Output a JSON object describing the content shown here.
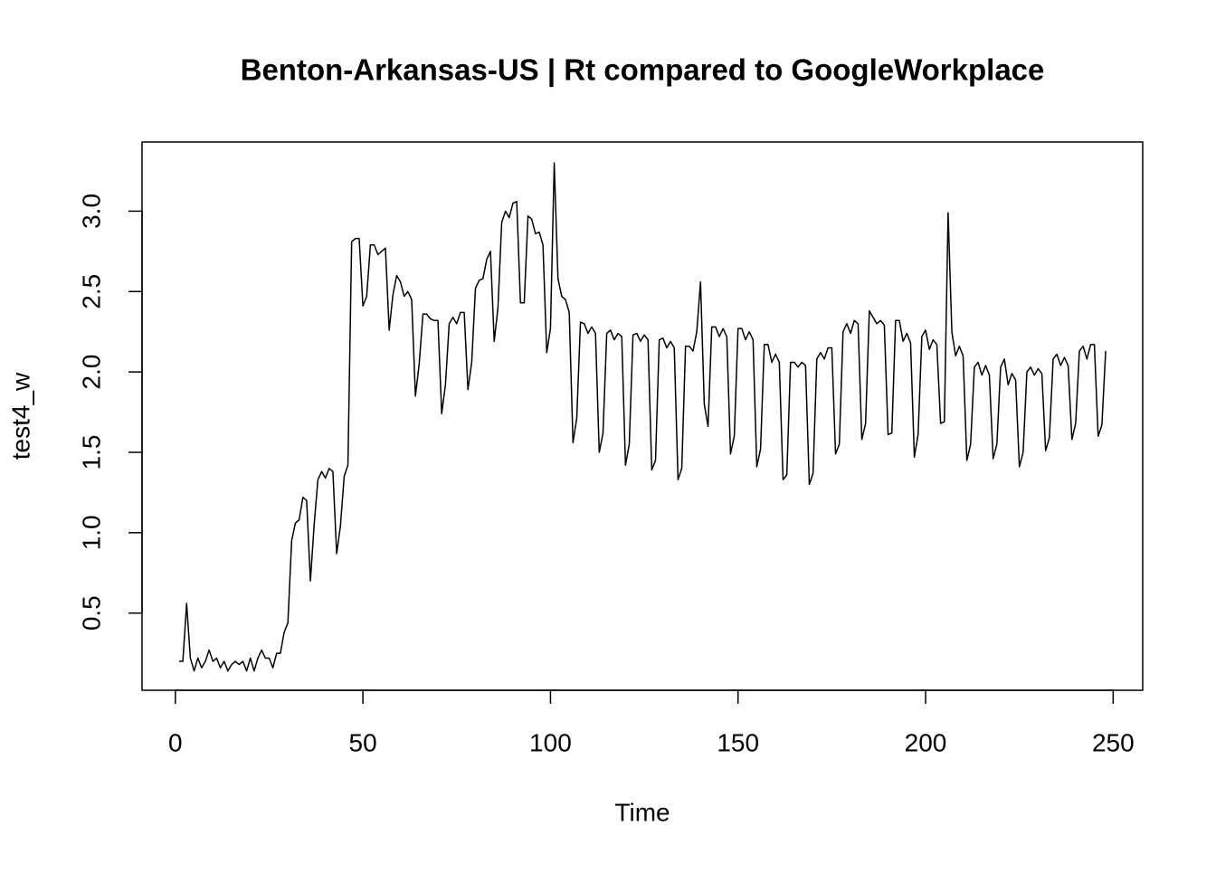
{
  "chart_data": {
    "type": "line",
    "title": "Benton-Arkansas-US | Rt compared to GoogleWorkplace",
    "x_label": "Time",
    "y_label": "test4_w",
    "color": "#000000",
    "xlim": [
      -8.88,
      257.88
    ],
    "ylim": [
      0.02,
      3.43
    ],
    "xticks": [
      0,
      50,
      100,
      150,
      200,
      250
    ],
    "yticks": [
      0.5,
      {
        "value": 1.0,
        "label": "1.0"
      },
      1.5,
      {
        "value": 2.0,
        "label": "2.0"
      },
      2.5,
      {
        "value": 3.0,
        "label": "3.0"
      }
    ],
    "x": [
      1,
      2,
      3,
      4,
      5,
      6,
      7,
      8,
      9,
      10,
      11,
      12,
      13,
      14,
      15,
      16,
      17,
      18,
      19,
      20,
      21,
      22,
      23,
      24,
      25,
      26,
      27,
      28,
      29,
      30,
      31,
      32,
      33,
      34,
      35,
      36,
      37,
      38,
      39,
      40,
      41,
      42,
      43,
      44,
      45,
      46,
      47,
      48,
      49,
      50,
      51,
      52,
      53,
      54,
      55,
      56,
      57,
      58,
      59,
      60,
      61,
      62,
      63,
      64,
      65,
      66,
      67,
      68,
      69,
      70,
      71,
      72,
      73,
      74,
      75,
      76,
      77,
      78,
      79,
      80,
      81,
      82,
      83,
      84,
      85,
      86,
      87,
      88,
      89,
      90,
      91,
      92,
      93,
      94,
      95,
      96,
      97,
      98,
      99,
      100,
      101,
      102,
      103,
      104,
      105,
      106,
      107,
      108,
      109,
      110,
      111,
      112,
      113,
      114,
      115,
      116,
      117,
      118,
      119,
      120,
      121,
      122,
      123,
      124,
      125,
      126,
      127,
      128,
      129,
      130,
      131,
      132,
      133,
      134,
      135,
      136,
      137,
      138,
      139,
      140,
      141,
      142,
      143,
      144,
      145,
      146,
      147,
      148,
      149,
      150,
      151,
      152,
      153,
      154,
      155,
      156,
      157,
      158,
      159,
      160,
      161,
      162,
      163,
      164,
      165,
      166,
      167,
      168,
      169,
      170,
      171,
      172,
      173,
      174,
      175,
      176,
      177,
      178,
      179,
      180,
      181,
      182,
      183,
      184,
      185,
      186,
      187,
      188,
      189,
      190,
      191,
      192,
      193,
      194,
      195,
      196,
      197,
      198,
      199,
      200,
      201,
      202,
      203,
      204,
      205,
      206,
      207,
      208,
      209,
      210,
      211,
      212,
      213,
      214,
      215,
      216,
      217,
      218,
      219,
      220,
      221,
      222,
      223,
      224,
      225,
      226,
      227,
      228,
      229,
      230,
      231,
      232,
      233,
      234,
      235,
      236,
      237,
      238,
      239,
      240,
      241,
      242,
      243,
      244,
      245,
      246,
      247,
      248
    ],
    "values": [
      0.2,
      0.2,
      0.56,
      0.22,
      0.14,
      0.22,
      0.16,
      0.2,
      0.27,
      0.2,
      0.22,
      0.16,
      0.2,
      0.14,
      0.18,
      0.2,
      0.18,
      0.2,
      0.14,
      0.22,
      0.14,
      0.22,
      0.27,
      0.22,
      0.22,
      0.16,
      0.25,
      0.25,
      0.38,
      0.44,
      0.95,
      1.06,
      1.08,
      1.22,
      1.2,
      0.7,
      1.05,
      1.33,
      1.38,
      1.34,
      1.4,
      1.38,
      0.87,
      1.04,
      1.35,
      1.42,
      2.81,
      2.83,
      2.83,
      2.41,
      2.47,
      2.79,
      2.79,
      2.73,
      2.75,
      2.77,
      2.26,
      2.48,
      2.6,
      2.56,
      2.47,
      2.5,
      2.45,
      1.85,
      2.05,
      2.36,
      2.36,
      2.33,
      2.32,
      2.32,
      1.74,
      1.92,
      2.3,
      2.34,
      2.3,
      2.37,
      2.37,
      1.89,
      2.06,
      2.52,
      2.57,
      2.58,
      2.7,
      2.75,
      2.19,
      2.4,
      2.93,
      3.0,
      2.96,
      3.05,
      3.06,
      2.43,
      2.43,
      2.97,
      2.95,
      2.86,
      2.87,
      2.79,
      2.12,
      2.27,
      3.3,
      2.58,
      2.47,
      2.45,
      2.37,
      1.56,
      1.71,
      2.31,
      2.3,
      2.24,
      2.28,
      2.24,
      1.5,
      1.62,
      2.24,
      2.26,
      2.2,
      2.24,
      2.22,
      1.42,
      1.55,
      2.23,
      2.24,
      2.19,
      2.23,
      2.2,
      1.39,
      1.45,
      2.2,
      2.21,
      2.15,
      2.19,
      2.15,
      1.33,
      1.4,
      2.16,
      2.16,
      2.13,
      2.25,
      2.56,
      1.8,
      1.66,
      2.28,
      2.28,
      2.22,
      2.27,
      2.22,
      1.49,
      1.6,
      2.27,
      2.27,
      2.2,
      2.25,
      2.2,
      1.41,
      1.52,
      2.17,
      2.17,
      2.06,
      2.11,
      2.06,
      1.33,
      1.36,
      2.06,
      2.06,
      2.03,
      2.06,
      2.04,
      1.3,
      1.37,
      2.08,
      2.12,
      2.08,
      2.15,
      2.15,
      1.49,
      1.55,
      2.25,
      2.3,
      2.24,
      2.32,
      2.3,
      1.58,
      1.68,
      2.38,
      2.34,
      2.3,
      2.32,
      2.29,
      1.61,
      1.62,
      2.32,
      2.32,
      2.19,
      2.24,
      2.18,
      1.47,
      1.61,
      2.22,
      2.26,
      2.14,
      2.2,
      2.17,
      1.68,
      1.69,
      2.99,
      2.25,
      2.1,
      2.16,
      2.1,
      1.45,
      1.55,
      2.03,
      2.06,
      1.98,
      2.04,
      1.98,
      1.46,
      1.55,
      2.03,
      2.08,
      1.92,
      1.99,
      1.95,
      1.41,
      1.5,
      2.0,
      2.03,
      1.98,
      2.02,
      1.99,
      1.51,
      1.59,
      2.08,
      2.11,
      2.04,
      2.09,
      2.04,
      1.58,
      1.68,
      2.13,
      2.16,
      2.08,
      2.17,
      2.17,
      1.6,
      1.67,
      2.13
    ]
  }
}
